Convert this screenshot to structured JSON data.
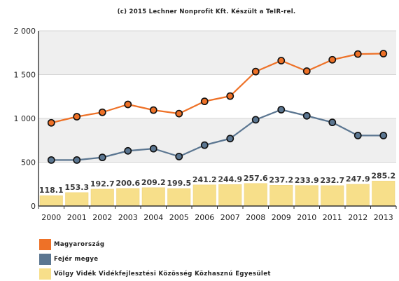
{
  "chart_data": {
    "type": "line",
    "title": "(c) 2015 Lechner Nonprofit Kft. Készült a TeIR-rel.",
    "x": [
      "2000",
      "2001",
      "2002",
      "2003",
      "2004",
      "2005",
      "2006",
      "2007",
      "2008",
      "2009",
      "2010",
      "2011",
      "2012",
      "2013"
    ],
    "ylim": [
      0,
      2000
    ],
    "yticks": [
      "0",
      "500",
      "1 000",
      "1 500",
      "2 000"
    ],
    "ytick_values": [
      0,
      500,
      1000,
      1500,
      2000
    ],
    "grid": true,
    "legend_placement": "bottom-left",
    "series": [
      {
        "name": "Magyarország",
        "type": "line",
        "color": "#ee7127",
        "values": [
          950,
          1020,
          1070,
          1160,
          1095,
          1055,
          1195,
          1255,
          1535,
          1660,
          1540,
          1670,
          1735,
          1740
        ]
      },
      {
        "name": "Fejér megye",
        "type": "line",
        "color": "#5b7691",
        "values": [
          525,
          525,
          555,
          630,
          655,
          565,
          695,
          770,
          985,
          1100,
          1030,
          955,
          805,
          805
        ]
      },
      {
        "name": "Völgy Vidék Vidékfejlesztési Közösség Közhasznú Egyesület",
        "type": "bar",
        "color": "#f7df8a",
        "values": [
          118.1,
          153.3,
          192.7,
          200.6,
          209.2,
          199.5,
          241.2,
          244.9,
          257.6,
          237.2,
          233.9,
          232.7,
          247.9,
          285.2
        ],
        "labels": [
          "118.1",
          "153.3",
          "192.7",
          "200.6",
          "209.2",
          "199.5",
          "241.2",
          "244.9",
          "257.6",
          "237.2",
          "233.9",
          "232.7",
          "247.9",
          "285.2"
        ]
      }
    ],
    "colors": {
      "band": "#efefef",
      "marker_fill": "#111111",
      "bar_edge": "#efd37c"
    }
  }
}
